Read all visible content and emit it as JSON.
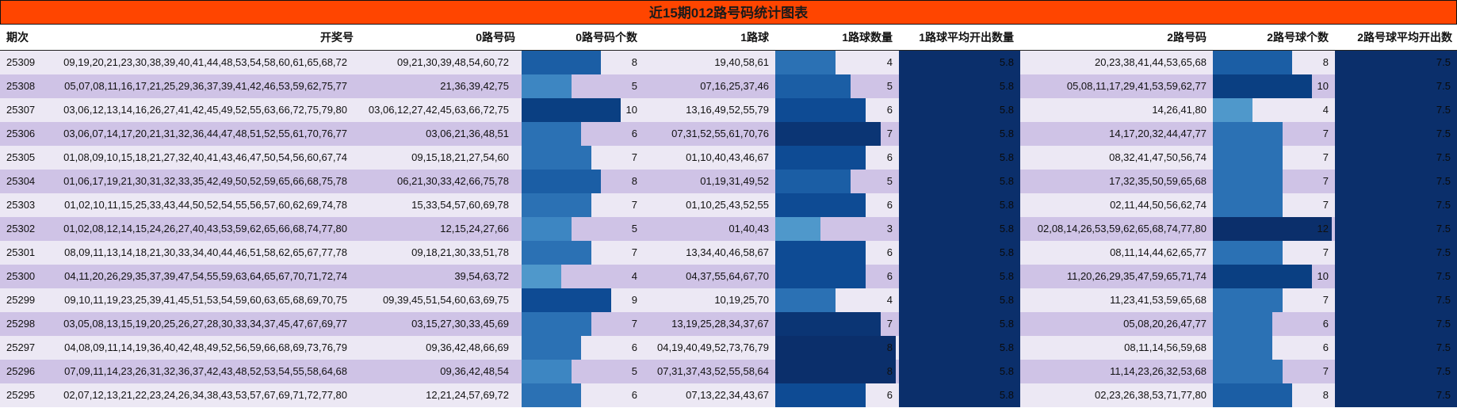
{
  "title": "近15期012路号码统计图表",
  "headers": {
    "period": "期次",
    "draw": "开奖号",
    "r0": "0路号码",
    "r0count": "0路号码个数",
    "r1": "1路球",
    "r1count": "1路球数量",
    "r1avg": "1路球平均开出数量",
    "r2": "2路号码",
    "r2count": "2路号球个数",
    "r2avg": "2路号球平均开出数"
  },
  "rows": [
    {
      "period": "25309",
      "draw": "09,19,20,21,23,30,38,39,40,41,44,48,53,54,58,60,61,65,68,72",
      "r0": "09,21,30,39,48,54,60,72",
      "c0": 8,
      "r1": "19,40,58,61",
      "c1": 4,
      "a1": "5.8",
      "r2": "20,23,38,41,44,53,65,68",
      "c2": 8,
      "a2": "7.5"
    },
    {
      "period": "25308",
      "draw": "05,07,08,11,16,17,21,25,29,36,37,39,41,42,46,53,59,62,75,77",
      "r0": "21,36,39,42,75",
      "c0": 5,
      "r1": "07,16,25,37,46",
      "c1": 5,
      "a1": "5.8",
      "r2": "05,08,11,17,29,41,53,59,62,77",
      "c2": 10,
      "a2": "7.5"
    },
    {
      "period": "25307",
      "draw": "03,06,12,13,14,16,26,27,41,42,45,49,52,55,63,66,72,75,79,80",
      "r0": "03,06,12,27,42,45,63,66,72,75",
      "c0": 10,
      "r1": "13,16,49,52,55,79",
      "c1": 6,
      "a1": "5.8",
      "r2": "14,26,41,80",
      "c2": 4,
      "a2": "7.5"
    },
    {
      "period": "25306",
      "draw": "03,06,07,14,17,20,21,31,32,36,44,47,48,51,52,55,61,70,76,77",
      "r0": "03,06,21,36,48,51",
      "c0": 6,
      "r1": "07,31,52,55,61,70,76",
      "c1": 7,
      "a1": "5.8",
      "r2": "14,17,20,32,44,47,77",
      "c2": 7,
      "a2": "7.5"
    },
    {
      "period": "25305",
      "draw": "01,08,09,10,15,18,21,27,32,40,41,43,46,47,50,54,56,60,67,74",
      "r0": "09,15,18,21,27,54,60",
      "c0": 7,
      "r1": "01,10,40,43,46,67",
      "c1": 6,
      "a1": "5.8",
      "r2": "08,32,41,47,50,56,74",
      "c2": 7,
      "a2": "7.5"
    },
    {
      "period": "25304",
      "draw": "01,06,17,19,21,30,31,32,33,35,42,49,50,52,59,65,66,68,75,78",
      "r0": "06,21,30,33,42,66,75,78",
      "c0": 8,
      "r1": "01,19,31,49,52",
      "c1": 5,
      "a1": "5.8",
      "r2": "17,32,35,50,59,65,68",
      "c2": 7,
      "a2": "7.5"
    },
    {
      "period": "25303",
      "draw": "01,02,10,11,15,25,33,43,44,50,52,54,55,56,57,60,62,69,74,78",
      "r0": "15,33,54,57,60,69,78",
      "c0": 7,
      "r1": "01,10,25,43,52,55",
      "c1": 6,
      "a1": "5.8",
      "r2": "02,11,44,50,56,62,74",
      "c2": 7,
      "a2": "7.5"
    },
    {
      "period": "25302",
      "draw": "01,02,08,12,14,15,24,26,27,40,43,53,59,62,65,66,68,74,77,80",
      "r0": "12,15,24,27,66",
      "c0": 5,
      "r1": "01,40,43",
      "c1": 3,
      "a1": "5.8",
      "r2": "02,08,14,26,53,59,62,65,68,74,77,80",
      "c2": 12,
      "a2": "7.5"
    },
    {
      "period": "25301",
      "draw": "08,09,11,13,14,18,21,30,33,34,40,44,46,51,58,62,65,67,77,78",
      "r0": "09,18,21,30,33,51,78",
      "c0": 7,
      "r1": "13,34,40,46,58,67",
      "c1": 6,
      "a1": "5.8",
      "r2": "08,11,14,44,62,65,77",
      "c2": 7,
      "a2": "7.5"
    },
    {
      "period": "25300",
      "draw": "04,11,20,26,29,35,37,39,47,54,55,59,63,64,65,67,70,71,72,74",
      "r0": "39,54,63,72",
      "c0": 4,
      "r1": "04,37,55,64,67,70",
      "c1": 6,
      "a1": "5.8",
      "r2": "11,20,26,29,35,47,59,65,71,74",
      "c2": 10,
      "a2": "7.5"
    },
    {
      "period": "25299",
      "draw": "09,10,11,19,23,25,39,41,45,51,53,54,59,60,63,65,68,69,70,75",
      "r0": "09,39,45,51,54,60,63,69,75",
      "c0": 9,
      "r1": "10,19,25,70",
      "c1": 4,
      "a1": "5.8",
      "r2": "11,23,41,53,59,65,68",
      "c2": 7,
      "a2": "7.5"
    },
    {
      "period": "25298",
      "draw": "03,05,08,13,15,19,20,25,26,27,28,30,33,34,37,45,47,67,69,77",
      "r0": "03,15,27,30,33,45,69",
      "c0": 7,
      "r1": "13,19,25,28,34,37,67",
      "c1": 7,
      "a1": "5.8",
      "r2": "05,08,20,26,47,77",
      "c2": 6,
      "a2": "7.5"
    },
    {
      "period": "25297",
      "draw": "04,08,09,11,14,19,36,40,42,48,49,52,56,59,66,68,69,73,76,79",
      "r0": "09,36,42,48,66,69",
      "c0": 6,
      "r1": "04,19,40,49,52,73,76,79",
      "c1": 8,
      "a1": "5.8",
      "r2": "08,11,14,56,59,68",
      "c2": 6,
      "a2": "7.5"
    },
    {
      "period": "25296",
      "draw": "07,09,11,14,23,26,31,32,36,37,42,43,48,52,53,54,55,58,64,68",
      "r0": "09,36,42,48,54",
      "c0": 5,
      "r1": "07,31,37,43,52,55,58,64",
      "c1": 8,
      "a1": "5.8",
      "r2": "11,14,23,26,32,53,68",
      "c2": 7,
      "a2": "7.5"
    },
    {
      "period": "25295",
      "draw": "02,07,12,13,21,22,23,24,26,34,38,43,53,57,67,69,71,72,77,80",
      "r0": "12,21,24,57,69,72",
      "c0": 6,
      "r1": "07,13,22,34,43,67",
      "c1": 6,
      "a1": "5.8",
      "r2": "02,23,26,38,53,71,77,80",
      "c2": 8,
      "a2": "7.5"
    }
  ]
}
